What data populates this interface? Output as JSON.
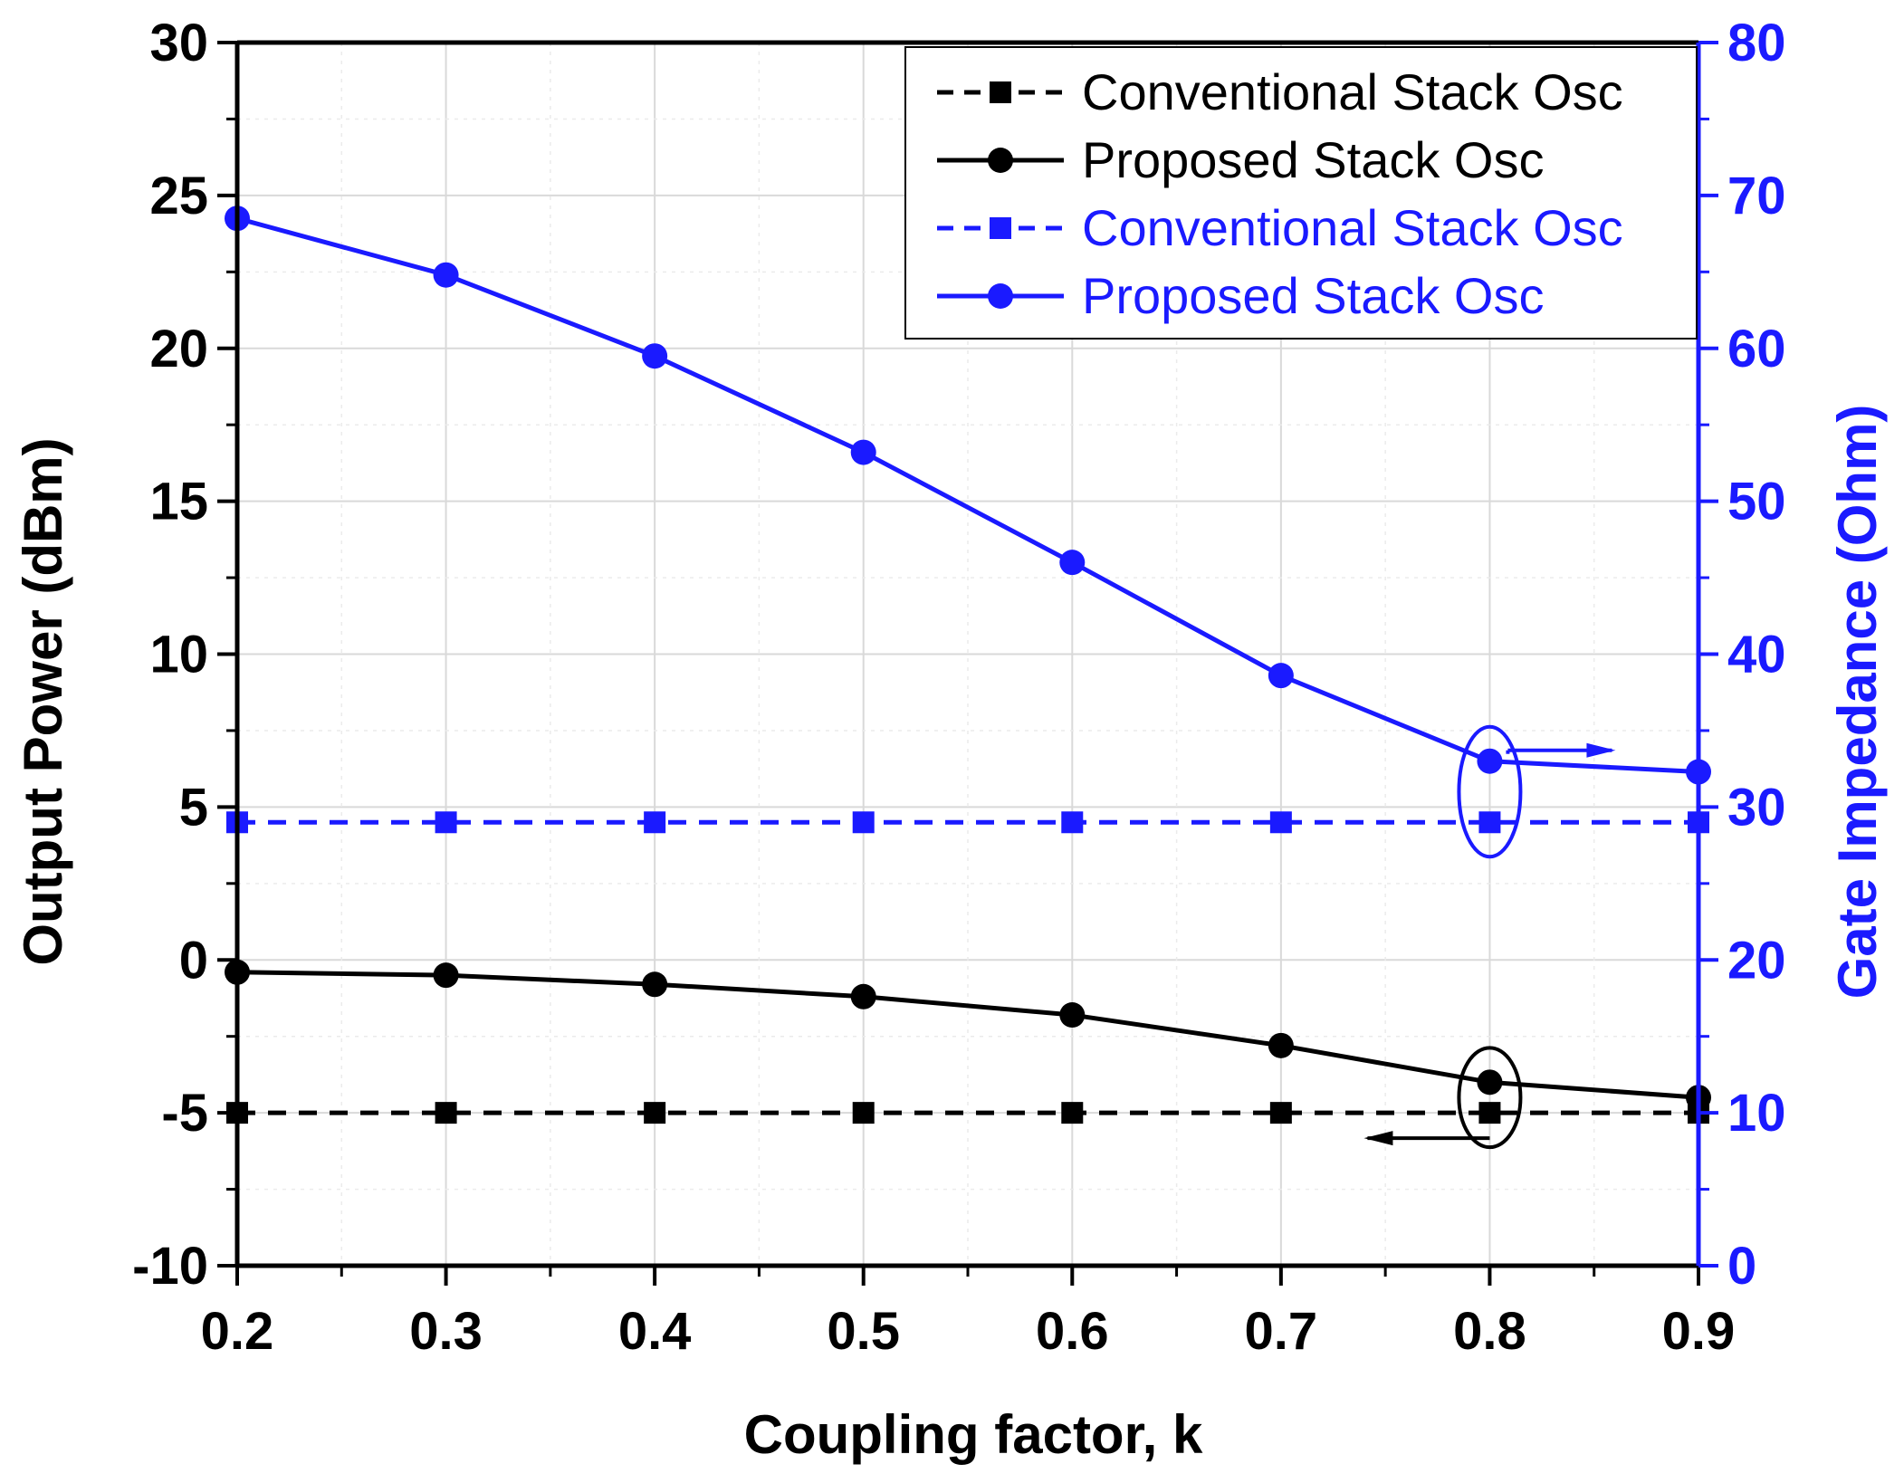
{
  "chart_data": {
    "type": "line",
    "title": "",
    "xlabel": "Coupling factor, k",
    "ylabel_left": "Output Power (dBm)",
    "ylabel_right": "Gate Impedance (Ohm)",
    "x": [
      0.2,
      0.3,
      0.4,
      0.5,
      0.6,
      0.7,
      0.8,
      0.9
    ],
    "x_tick_labels": [
      "0.2",
      "0.3",
      "0.4",
      "0.5",
      "0.6",
      "0.7",
      "0.8",
      "0.9"
    ],
    "xlim": [
      0.2,
      0.9
    ],
    "ylim_left": [
      -10,
      30
    ],
    "y_left_tick_labels": [
      "-10",
      "-5",
      "0",
      "5",
      "10",
      "15",
      "20",
      "25",
      "30"
    ],
    "ylim_right": [
      0,
      80
    ],
    "y_right_tick_labels": [
      "0",
      "10",
      "20",
      "30",
      "40",
      "50",
      "60",
      "70",
      "80"
    ],
    "grid": true,
    "legend_position": "top-right",
    "colors": {
      "left_axis": "#000000",
      "right_axis": "#1a1aff",
      "grid": "#d9d9d9"
    },
    "series": [
      {
        "name": "Conventional Stack Osc",
        "axis": "left",
        "color": "#000000",
        "style": "dashed",
        "marker": "square",
        "values": [
          -5,
          -5,
          -5,
          -5,
          -5,
          -5,
          -5,
          -5
        ]
      },
      {
        "name": "Proposed Stack Osc",
        "axis": "left",
        "color": "#000000",
        "style": "solid",
        "marker": "circle",
        "values": [
          -0.4,
          -0.5,
          -0.8,
          -1.2,
          -1.8,
          -2.8,
          -4.0,
          -4.5
        ]
      },
      {
        "name": "Conventional Stack Osc",
        "axis": "right",
        "color": "#1a1aff",
        "style": "dashed",
        "marker": "square",
        "values": [
          29,
          29,
          29,
          29,
          29,
          29,
          29,
          29
        ]
      },
      {
        "name": "Proposed Stack Osc",
        "axis": "right",
        "color": "#1a1aff",
        "style": "solid",
        "marker": "circle",
        "values": [
          68.5,
          64.8,
          59.5,
          53.2,
          46,
          38.6,
          33,
          32.3
        ]
      }
    ],
    "annotations": [
      {
        "type": "ellipse-with-arrow",
        "at_x": 0.8,
        "axis": "right",
        "around_values": [
          29,
          33
        ],
        "arrow_direction": "right"
      },
      {
        "type": "ellipse-with-arrow",
        "at_x": 0.8,
        "axis": "left",
        "around_values": [
          -5,
          -4.0
        ],
        "arrow_direction": "left"
      }
    ]
  }
}
